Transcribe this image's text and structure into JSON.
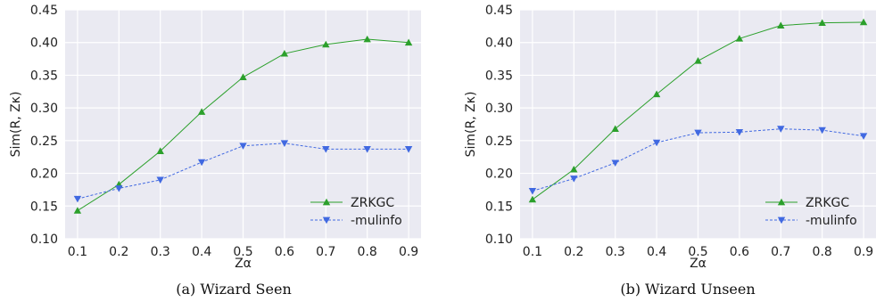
{
  "chart_data": [
    {
      "type": "line",
      "caption": "(a) Wizard Seen",
      "xlabel": "Zα",
      "ylabel": "Sim(R, Zκ)",
      "x": [
        0.1,
        0.2,
        0.3,
        0.4,
        0.5,
        0.6,
        0.7,
        0.8,
        0.9
      ],
      "xticks": [
        "0.1",
        "0.2",
        "0.3",
        "0.4",
        "0.5",
        "0.6",
        "0.7",
        "0.8",
        "0.9"
      ],
      "yticks": [
        "0.10",
        "0.15",
        "0.20",
        "0.25",
        "0.30",
        "0.35",
        "0.40",
        "0.45"
      ],
      "ylim": [
        0.1,
        0.45
      ],
      "xlim": [
        0.07,
        0.93
      ],
      "grid": true,
      "legend_position": "lower-right",
      "series": [
        {
          "name": "ZRKGC",
          "color": "#2ca02c",
          "marker": "triangle-up",
          "dash": "solid",
          "values": [
            0.143,
            0.183,
            0.234,
            0.294,
            0.347,
            0.383,
            0.397,
            0.405,
            0.4
          ]
        },
        {
          "name": "-mulinfo",
          "color": "#4169e1",
          "marker": "triangle-down",
          "dash": "dashed",
          "values": [
            0.161,
            0.177,
            0.19,
            0.217,
            0.242,
            0.246,
            0.237,
            0.237,
            0.237
          ]
        }
      ]
    },
    {
      "type": "line",
      "caption": "(b) Wizard Unseen",
      "xlabel": "Zα",
      "ylabel": "Sim(R, Zκ)",
      "x": [
        0.1,
        0.2,
        0.3,
        0.4,
        0.5,
        0.6,
        0.7,
        0.8,
        0.9
      ],
      "xticks": [
        "0.1",
        "0.2",
        "0.3",
        "0.4",
        "0.5",
        "0.6",
        "0.7",
        "0.8",
        "0.9"
      ],
      "yticks": [
        "0.10",
        "0.15",
        "0.20",
        "0.25",
        "0.30",
        "0.35",
        "0.40",
        "0.45"
      ],
      "ylim": [
        0.1,
        0.45
      ],
      "xlim": [
        0.07,
        0.93
      ],
      "grid": true,
      "legend_position": "lower-right",
      "series": [
        {
          "name": "ZRKGC",
          "color": "#2ca02c",
          "marker": "triangle-up",
          "dash": "solid",
          "values": [
            0.16,
            0.206,
            0.268,
            0.321,
            0.372,
            0.406,
            0.426,
            0.43,
            0.431
          ]
        },
        {
          "name": "-mulinfo",
          "color": "#4169e1",
          "marker": "triangle-down",
          "dash": "dashed",
          "values": [
            0.173,
            0.192,
            0.216,
            0.247,
            0.262,
            0.263,
            0.268,
            0.266,
            0.257
          ]
        }
      ]
    }
  ]
}
